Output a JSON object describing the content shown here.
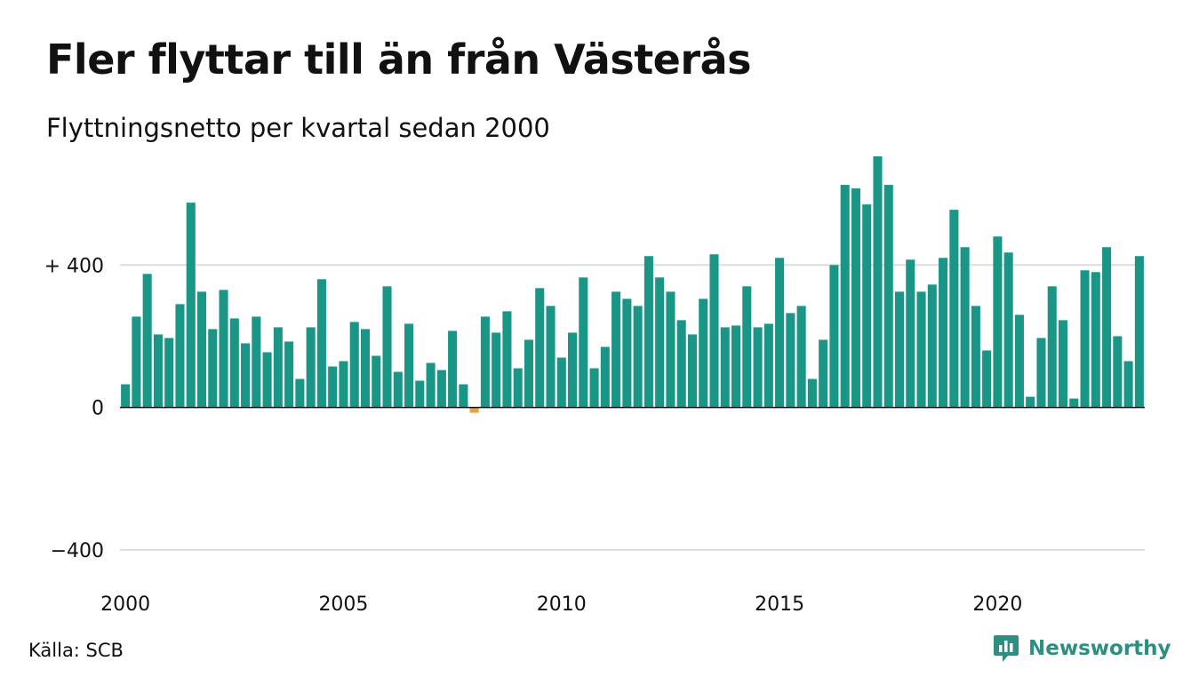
{
  "chart_data": {
    "type": "bar",
    "title": "Fler flyttar till än från Västerås",
    "subtitle": "Flyttningsnetto per kvartal sedan 2000",
    "source": "Källa: SCB",
    "brand": "Newsworthy",
    "x_start": 2000,
    "periods_per_year": 4,
    "x_ticks": [
      "2000",
      "2005",
      "2010",
      "2015",
      "2020"
    ],
    "y_ticks": [
      {
        "value": 400,
        "label": "+ 400"
      },
      {
        "value": 0,
        "label": "0"
      },
      {
        "value": -400,
        "label": "−400"
      }
    ],
    "ylim": [
      -520,
      720
    ],
    "grid": true,
    "colors": {
      "positive": "#1a9687",
      "negative": "#e8a33a",
      "grid": "#dddddd",
      "axis": "#111111",
      "brand": "#2b8f82"
    },
    "values": [
      65,
      255,
      375,
      205,
      195,
      290,
      575,
      325,
      220,
      330,
      250,
      180,
      255,
      155,
      225,
      185,
      80,
      225,
      360,
      115,
      130,
      240,
      220,
      145,
      340,
      100,
      235,
      75,
      125,
      105,
      215,
      65,
      -15,
      255,
      210,
      270,
      110,
      190,
      335,
      285,
      140,
      210,
      365,
      110,
      170,
      325,
      305,
      285,
      425,
      365,
      325,
      245,
      205,
      305,
      430,
      225,
      230,
      340,
      225,
      235,
      420,
      265,
      285,
      80,
      190,
      400,
      625,
      615,
      570,
      705,
      625,
      325,
      415,
      325,
      345,
      420,
      555,
      450,
      285,
      160,
      480,
      435,
      260,
      30,
      195,
      340,
      245,
      25,
      385,
      380,
      450,
      200,
      130,
      425
    ]
  }
}
